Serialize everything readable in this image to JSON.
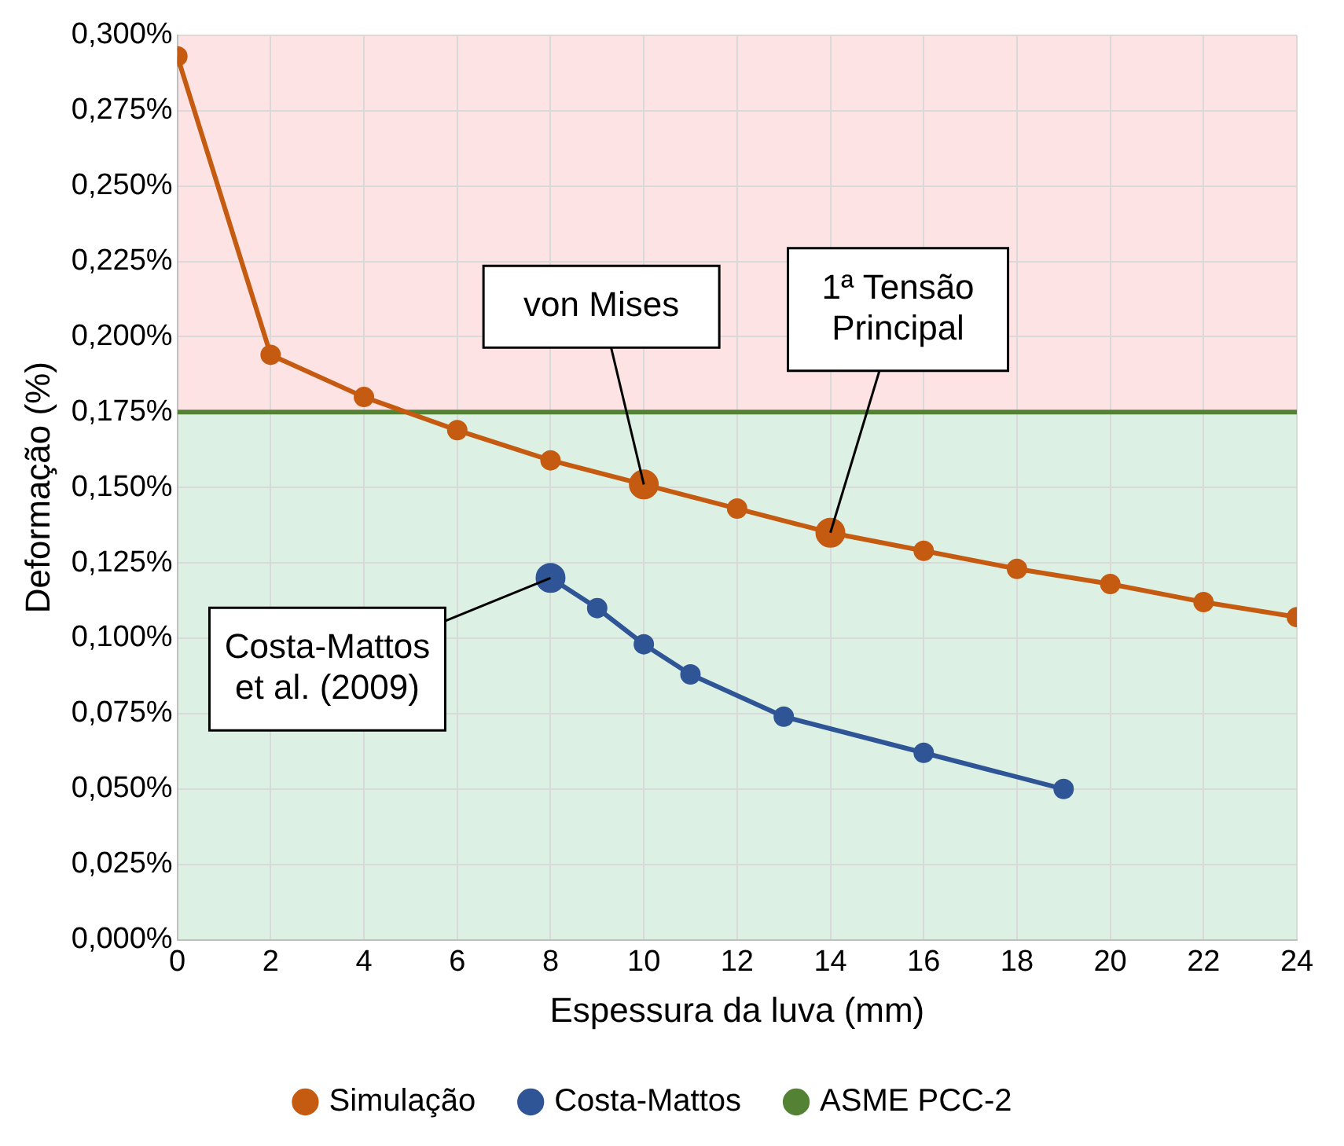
{
  "chart_data": {
    "type": "line",
    "xlabel": "Espessura da luva (mm)",
    "ylabel": "Deformação (%)",
    "series": [
      {
        "name": "Simulação",
        "color": "#c55a11",
        "x": [
          0,
          2,
          4,
          6,
          8,
          10,
          12,
          14,
          16,
          18,
          20,
          22,
          24
        ],
        "values": [
          0.293,
          0.194,
          0.18,
          0.169,
          0.159,
          0.151,
          0.143,
          0.135,
          0.129,
          0.123,
          0.118,
          0.112,
          0.107
        ]
      },
      {
        "name": "Costa-Mattos",
        "color": "#2f5597",
        "x": [
          8,
          9,
          10,
          11,
          13,
          16,
          19
        ],
        "values": [
          0.12,
          0.11,
          0.098,
          0.088,
          0.074,
          0.062,
          0.05
        ]
      },
      {
        "name": "ASME PCC-2",
        "color": "#548235",
        "x": [
          0,
          24
        ],
        "values": [
          0.175,
          0.175
        ],
        "marker": "none"
      }
    ],
    "bands": [
      {
        "axis": "y",
        "from": 0.175,
        "to": 0.3,
        "color": "#fde3e3"
      },
      {
        "axis": "y",
        "from": 0,
        "to": 0.175,
        "color": "#dcf1e4"
      }
    ],
    "annotations": [
      {
        "text": "von Mises",
        "x": 10,
        "y": 0.151
      },
      {
        "text": "1ª Tensão Principal",
        "x": 14,
        "y": 0.135
      },
      {
        "text": "Costa-Mattos et al. (2009)",
        "x": 8,
        "y": 0.12
      }
    ],
    "xlim": [
      0,
      24
    ],
    "xticks": [
      0,
      2,
      4,
      6,
      8,
      10,
      12,
      14,
      16,
      18,
      20,
      22,
      24
    ],
    "ylim": [
      0,
      0.3
    ],
    "yticks": [
      {
        "value": 0,
        "label": "0,000%"
      },
      {
        "value": 0.025,
        "label": "0,025%"
      },
      {
        "value": 0.05,
        "label": "0,050%"
      },
      {
        "value": 0.075,
        "label": "0,075%"
      },
      {
        "value": 0.1,
        "label": "0,100%"
      },
      {
        "value": 0.125,
        "label": "0,125%"
      },
      {
        "value": 0.15,
        "label": "0,150%"
      },
      {
        "value": 0.175,
        "label": "0,175%"
      },
      {
        "value": 0.2,
        "label": "0,200%"
      },
      {
        "value": 0.225,
        "label": "0,225%"
      },
      {
        "value": 0.25,
        "label": "0,250%"
      },
      {
        "value": 0.275,
        "label": "0,275%"
      },
      {
        "value": 0.3,
        "label": "0,300%"
      }
    ],
    "grid": true,
    "legend": "bottom",
    "marker": "circle",
    "line_style": "solid"
  }
}
